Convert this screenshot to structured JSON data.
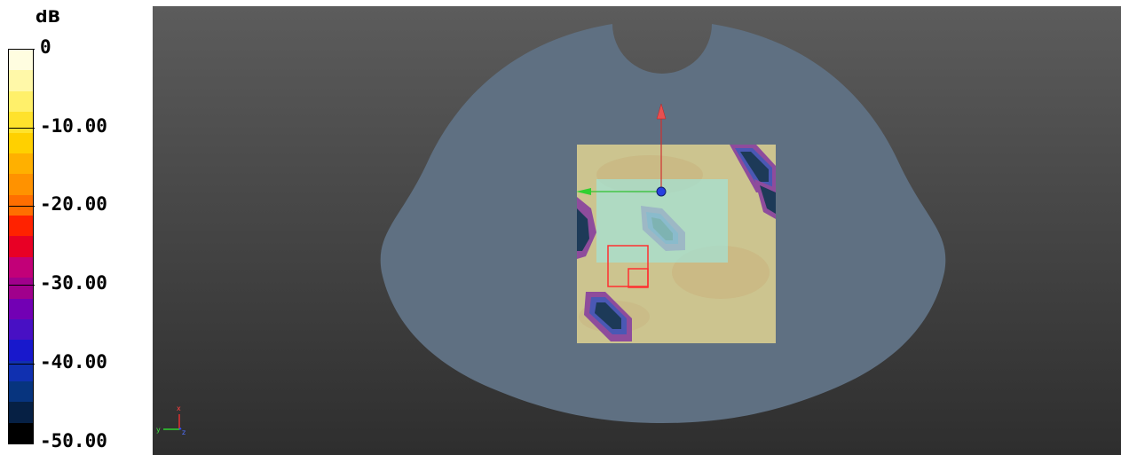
{
  "legend": {
    "unit": "dB",
    "ticks": [
      "0",
      "-10.00",
      "-20.00",
      "-30.00",
      "-40.00",
      "-50.00"
    ],
    "colors": [
      "#fffde0",
      "#fff8a8",
      "#fff06a",
      "#ffe22c",
      "#ffd000",
      "#ffb000",
      "#ff9200",
      "#ff6e00",
      "#ff2200",
      "#e80025",
      "#c20078",
      "#a0008c",
      "#7200b4",
      "#4810c4",
      "#1818cc",
      "#1030b0",
      "#07347e",
      "#062044",
      "#000000"
    ]
  },
  "viewport": {
    "phantom_color": "#5f7082",
    "field_map_color": "#ccc48f",
    "hotspot_color": "#1d3a58",
    "roi_color": "#a3e2d5",
    "marker_color": "#ff3030"
  },
  "axes_triad": {
    "x_label": "x",
    "y_label": "y",
    "z_label": "z"
  }
}
